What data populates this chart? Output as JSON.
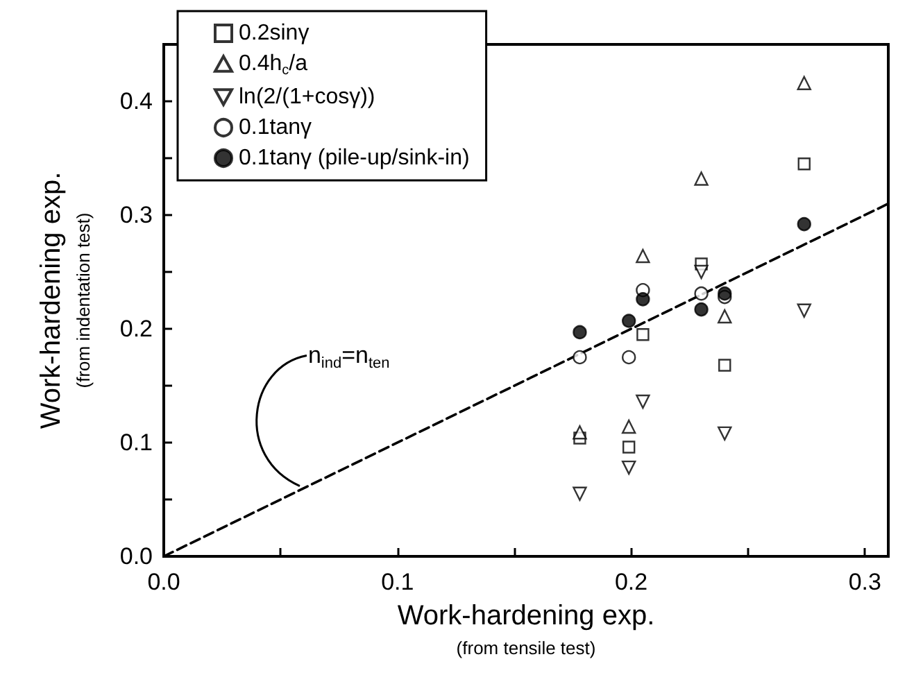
{
  "chart_data": {
    "type": "scatter",
    "xlabel": "Work-hardening exp.\n(from tensile test)",
    "ylabel": "Work-hardening exp.\n(from indentation test)",
    "xlim": [
      0,
      0.31
    ],
    "ylim": [
      0,
      0.45
    ],
    "xticks": [
      {
        "value": 0,
        "label": "0.0"
      },
      {
        "value": 0.05,
        "label": null
      },
      0.1,
      {
        "value": 0.15,
        "label": null
      },
      0.2,
      {
        "value": 0.25,
        "label": null
      },
      0.3
    ],
    "yticks": [
      {
        "value": 0,
        "label": "0.0"
      },
      {
        "value": 0.05,
        "label": null
      },
      0.1,
      {
        "value": 0.15,
        "label": null
      },
      0.2,
      {
        "value": 0.25,
        "label": null
      },
      0.3,
      {
        "value": 0.35,
        "label": null
      },
      0.4
    ],
    "legend": "top left",
    "grid": false,
    "annotations": [
      {
        "text": "n$_{ind}$=n$_{ten}$",
        "x": 0.057,
        "y": 0.057
      }
    ],
    "series": [
      {
        "name": "0.2sinγ",
        "color": "#ffffff",
        "marker": "square",
        "x": [
          0.178,
          0.199,
          0.205,
          0.23,
          0.24,
          0.274
        ],
        "values": [
          0.104,
          0.096,
          0.195,
          0.257,
          0.168,
          0.345
        ]
      },
      {
        "name": "0.4h$_{c}$/a",
        "color": "#ffffff",
        "marker": "triangle",
        "x": [
          0.178,
          0.199,
          0.205,
          0.23,
          0.24,
          0.274
        ],
        "values": [
          0.109,
          0.114,
          0.264,
          0.332,
          0.211,
          0.416
        ]
      },
      {
        "name": "ln(2/(1+cosγ))",
        "color": "#ffffff",
        "marker": "triangle-down",
        "x": [
          0.178,
          0.199,
          0.205,
          0.23,
          0.24,
          0.274
        ],
        "values": [
          0.055,
          0.078,
          0.136,
          0.25,
          0.108,
          0.216
        ]
      },
      {
        "name": "0.1tanγ",
        "color": "#ffffff",
        "marker": "circle",
        "x": [
          0.178,
          0.199,
          0.205,
          0.23,
          0.24
        ],
        "values": [
          0.175,
          0.175,
          0.234,
          0.231,
          0.228
        ]
      },
      {
        "name": "0.1tanγ (pile-up/sink-in)",
        "color": "#000000",
        "marker": "circle",
        "x": [
          0.178,
          0.199,
          0.205,
          0.23,
          0.24,
          0.274
        ],
        "values": [
          0.197,
          0.207,
          0.226,
          0.217,
          0.231,
          0.292
        ]
      },
      {
        "type": "line",
        "color": "#000000",
        "marker": "none",
        "line_style": "dashed",
        "x": [
          0,
          0.31
        ],
        "values": [
          0,
          0.31
        ]
      }
    ]
  }
}
